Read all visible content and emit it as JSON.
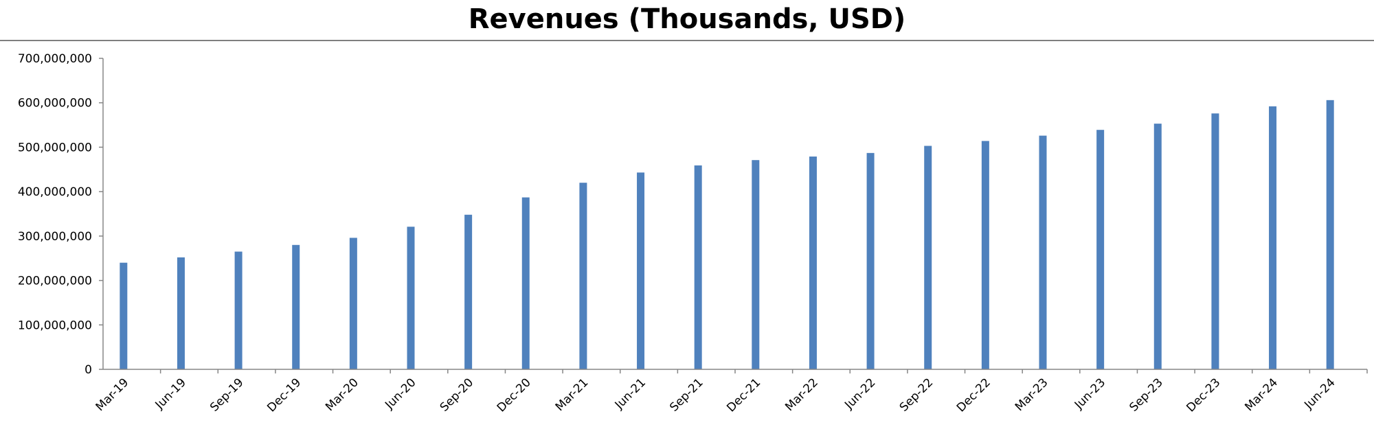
{
  "chart_data": {
    "type": "bar",
    "title": "Revenues (Thousands, USD)",
    "xlabel": "",
    "ylabel": "",
    "ylim": [
      0,
      700000000
    ],
    "yticks": [
      0,
      100000000,
      200000000,
      300000000,
      400000000,
      500000000,
      600000000,
      700000000
    ],
    "ytick_labels": [
      "0",
      "100,000,000",
      "200,000,000",
      "300,000,000",
      "400,000,000",
      "500,000,000",
      "600,000,000",
      "700,000,000"
    ],
    "categories": [
      "Mar-19",
      "Jun-19",
      "Sep-19",
      "Dec-19",
      "Mar-20",
      "Jun-20",
      "Sep-20",
      "Dec-20",
      "Mar-21",
      "Jun-21",
      "Sep-21",
      "Dec-21",
      "Mar-22",
      "Jun-22",
      "Sep-22",
      "Dec-22",
      "Mar-23",
      "Jun-23",
      "Sep-23",
      "Dec-23",
      "Mar-24",
      "Jun-24"
    ],
    "values": [
      240000000,
      252000000,
      265000000,
      280000000,
      296000000,
      321000000,
      348000000,
      387000000,
      420000000,
      443000000,
      459000000,
      471000000,
      479000000,
      487000000,
      503000000,
      514000000,
      526000000,
      539000000,
      553000000,
      576000000,
      592000000,
      606000000
    ],
    "bar_color": "#4f81bd",
    "grid": false,
    "legend": "none"
  }
}
